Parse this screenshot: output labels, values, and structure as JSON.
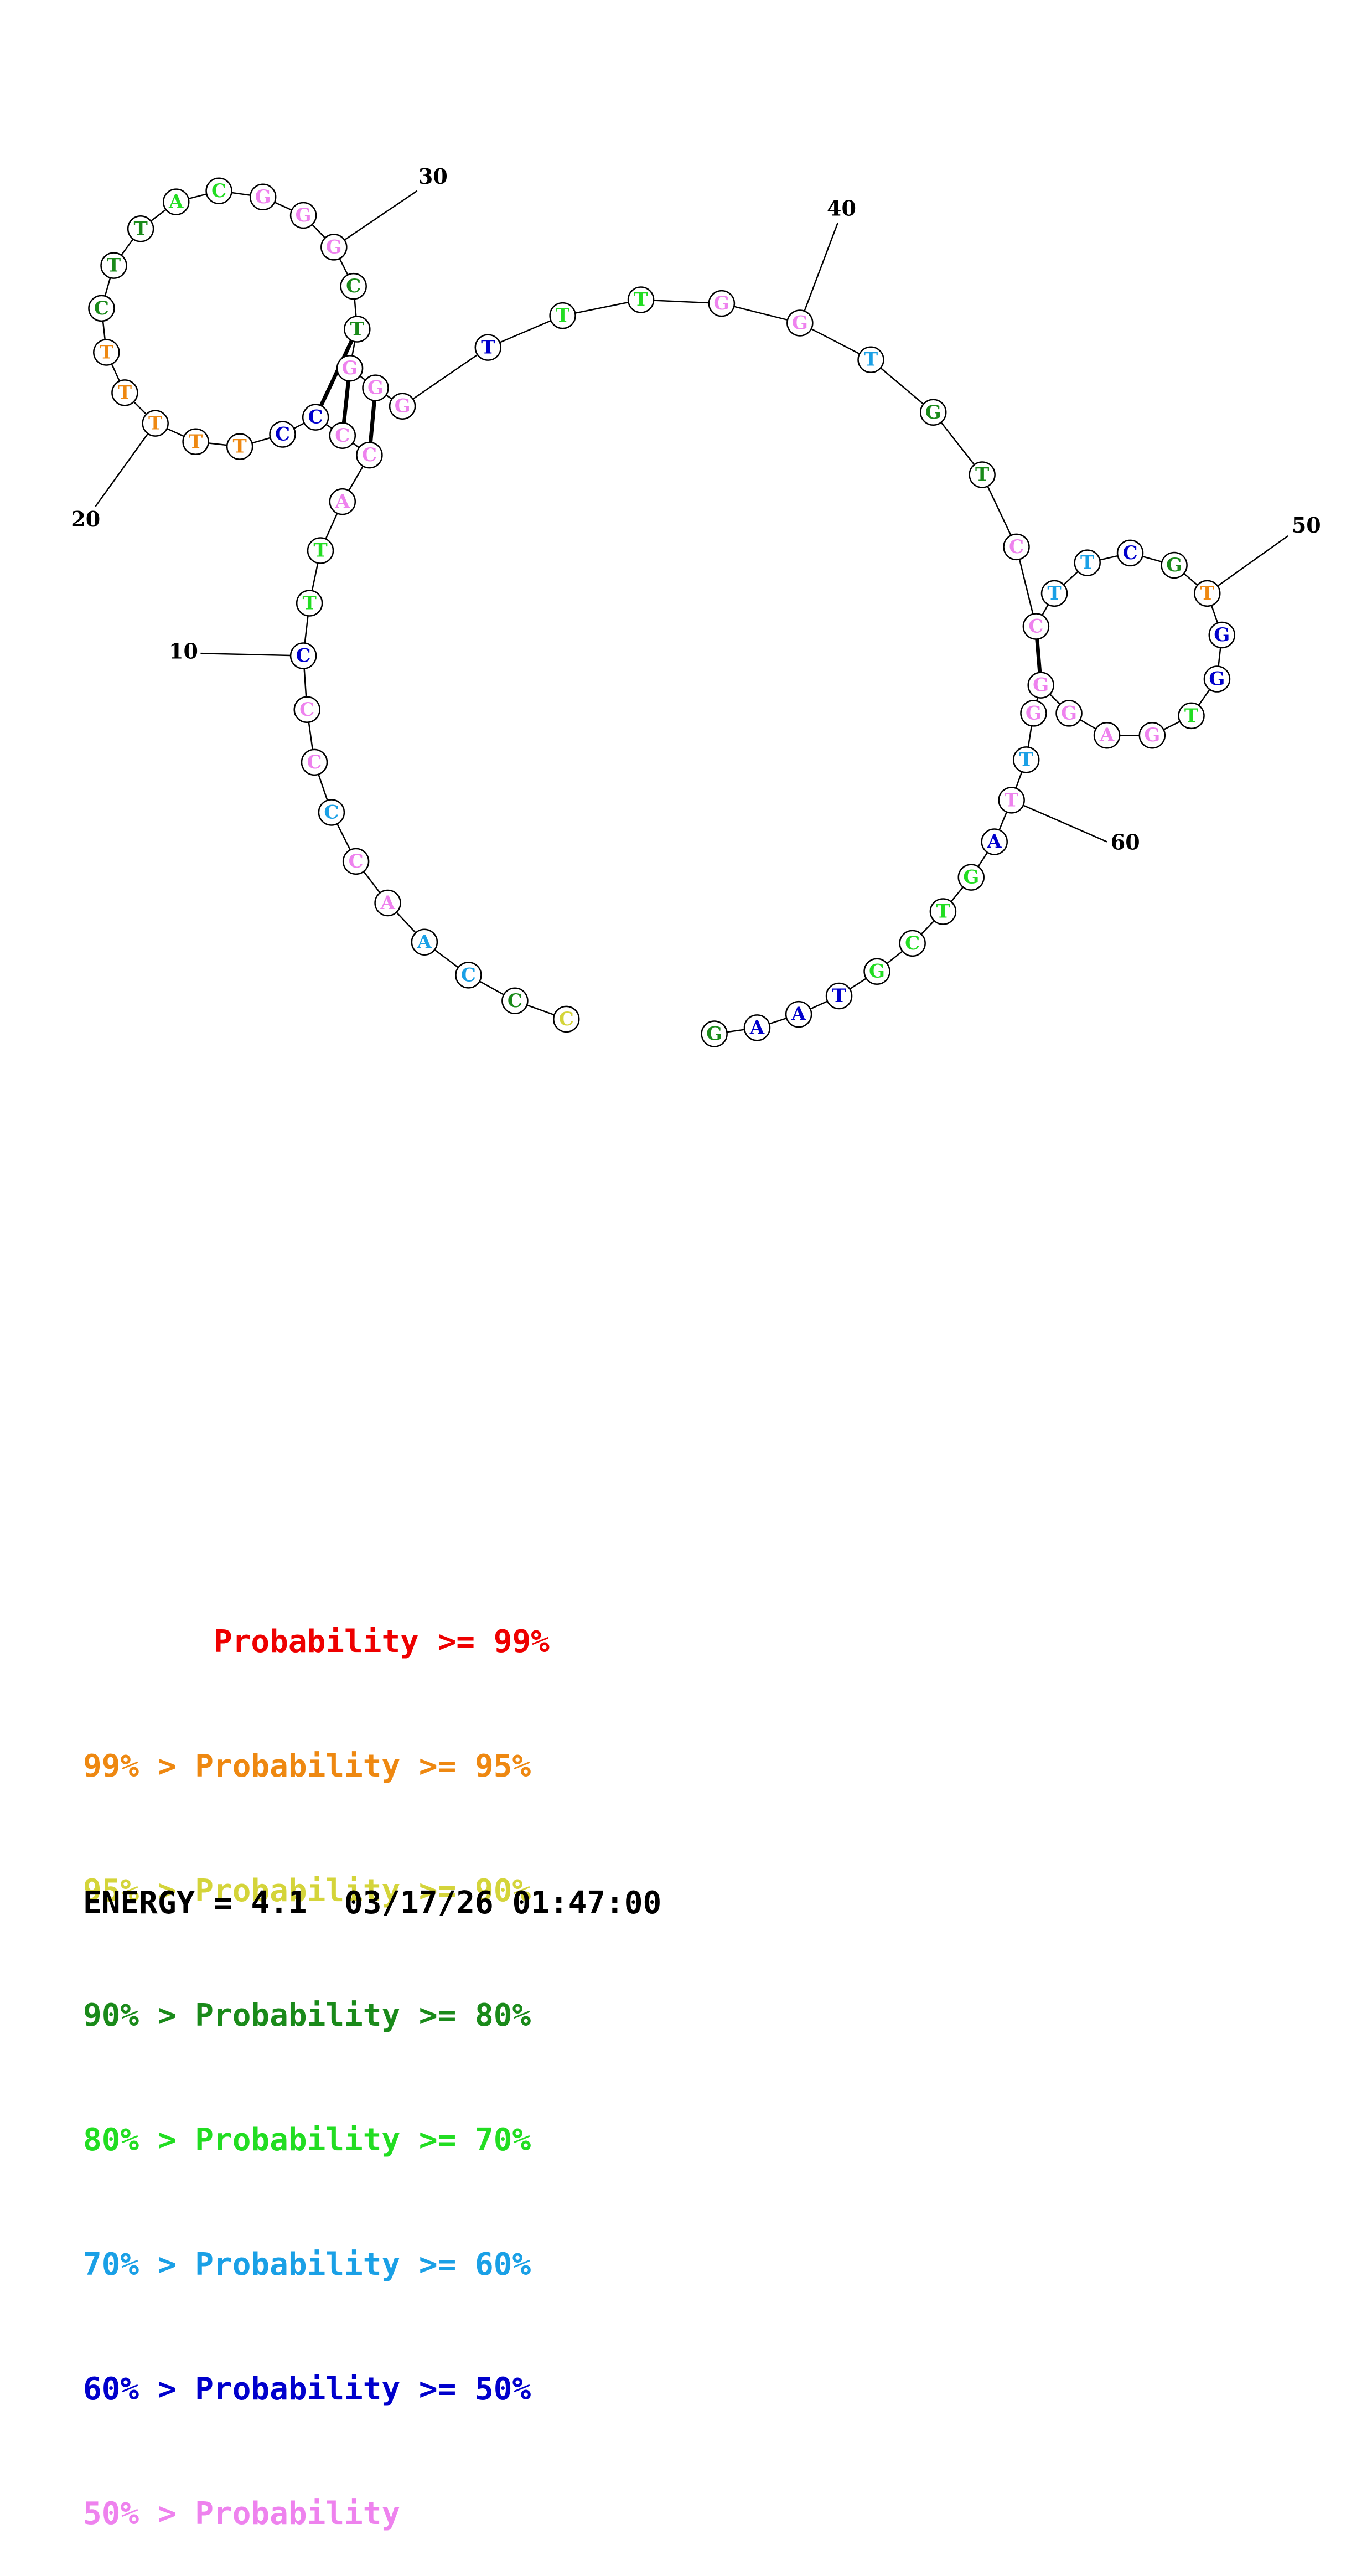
{
  "sequence": {
    "nucleotides": [
      "C",
      "C",
      "C",
      "A",
      "A",
      "C",
      "C",
      "C",
      "C",
      "C",
      "T",
      "T",
      "A",
      "C",
      "C",
      "C",
      "C",
      "T",
      "T",
      "T",
      "T",
      "T",
      "C",
      "T",
      "T",
      "A",
      "C",
      "G",
      "G",
      "G",
      "C",
      "T",
      "G",
      "G",
      "G",
      "T",
      "T",
      "T",
      "G",
      "G",
      "T",
      "G",
      "T",
      "C",
      "C",
      "T",
      "T",
      "C",
      "G",
      "T",
      "G",
      "G",
      "T",
      "G",
      "A",
      "G",
      "G",
      "G",
      "T",
      "T",
      "A",
      "G",
      "T",
      "C",
      "G",
      "T",
      "A",
      "A",
      "G"
    ],
    "colors": [
      "#d4d43a",
      "#1a8a1a",
      "#1aa0e6",
      "#1aa0e6",
      "#ee82ee",
      "#ee82ee",
      "#1aa0e6",
      "#ee82ee",
      "#ee82ee",
      "#0000cc",
      "#22dd22",
      "#22dd22",
      "#ee82ee",
      "#ee82ee",
      "#ee82ee",
      "#0000cc",
      "#0000cc",
      "#ee8811",
      "#ee8811",
      "#ee8811",
      "#ee8811",
      "#ee8811",
      "#1a8a1a",
      "#1a8a1a",
      "#1a8a1a",
      "#22dd22",
      "#22dd22",
      "#ee82ee",
      "#ee82ee",
      "#ee82ee",
      "#1a8a1a",
      "#1a8a1a",
      "#ee82ee",
      "#ee82ee",
      "#ee82ee",
      "#0000cc",
      "#22dd22",
      "#22dd22",
      "#ee82ee",
      "#ee82ee",
      "#1aa0e6",
      "#1a8a1a",
      "#1a8a1a",
      "#ee82ee",
      "#ee82ee",
      "#1aa0e6",
      "#1aa0e6",
      "#0000cc",
      "#1a8a1a",
      "#ee8811",
      "#0000cc",
      "#0000cc",
      "#22dd22",
      "#ee82ee",
      "#ee82ee",
      "#ee82ee",
      "#ee82ee",
      "#ee82ee",
      "#1aa0e6",
      "#ee82ee",
      "#0000cc",
      "#22dd22",
      "#22dd22",
      "#22dd22",
      "#22dd22",
      "#0000cc",
      "#0000cc",
      "#0000cc",
      "#1a8a1a"
    ],
    "position_labels": [
      "10",
      "20",
      "30",
      "40",
      "50",
      "60"
    ]
  },
  "legend": {
    "lines": [
      {
        "text": "       Probability >= 99%",
        "color": "#ee0000"
      },
      {
        "text": "99% > Probability >= 95%",
        "color": "#ee8811"
      },
      {
        "text": "95% > Probability >= 90%",
        "color": "#d4d43a"
      },
      {
        "text": "90% > Probability >= 80%",
        "color": "#1a8a1a"
      },
      {
        "text": "80% > Probability >= 70%",
        "color": "#22dd22"
      },
      {
        "text": "70% > Probability >= 60%",
        "color": "#1aa0e6"
      },
      {
        "text": "60% > Probability >= 50%",
        "color": "#0000cc"
      },
      {
        "text": "50% > Probability",
        "color": "#ee82ee"
      }
    ]
  },
  "footer": {
    "energy_label": "ENERGY = 4.1",
    "timestamp": "03/17/26 01:47:00"
  }
}
